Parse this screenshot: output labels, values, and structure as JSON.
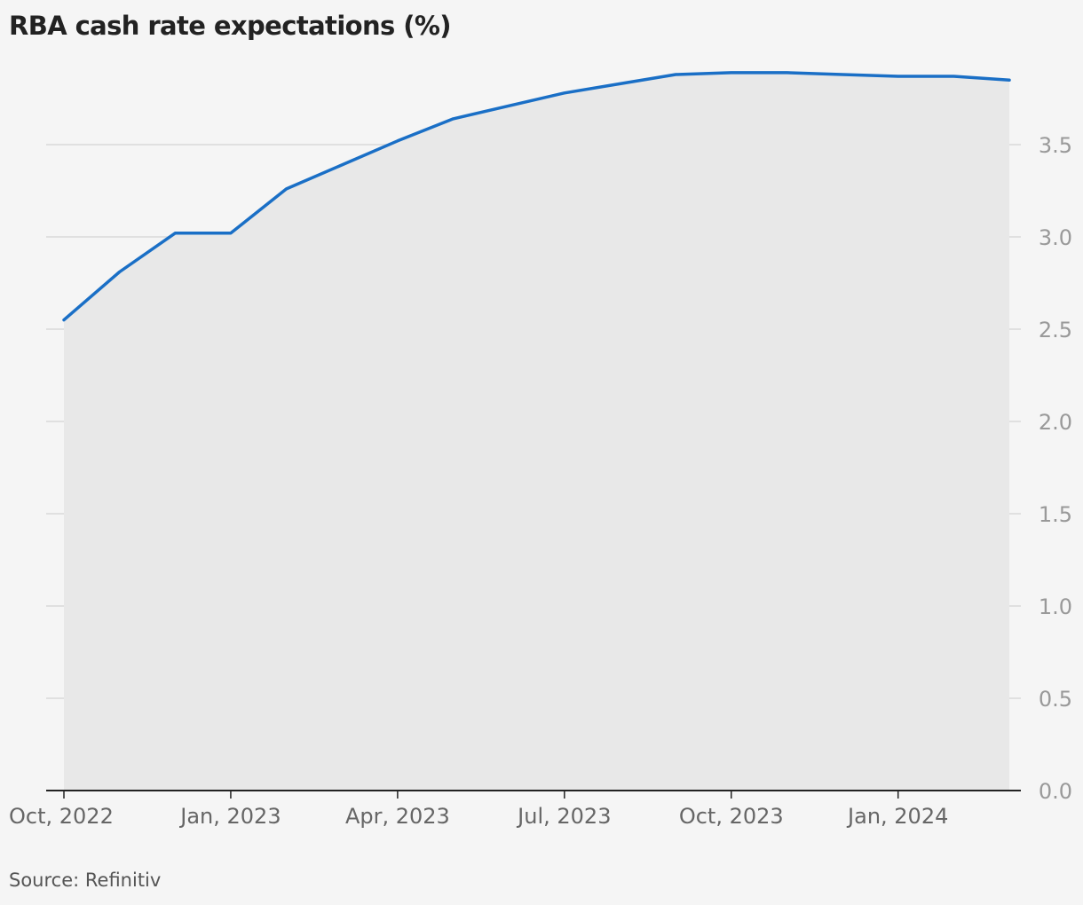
{
  "title": "RBA cash rate expectations (%)",
  "source": "Source: Refinitiv",
  "colors": {
    "line": "#1a6fc6",
    "area": "#e8e8e8",
    "grid": "#d9d9d9",
    "axis": "#222222",
    "background": "#f5f5f5"
  },
  "chart_data": {
    "type": "area",
    "title": "RBA cash rate expectations (%)",
    "xlabel": "",
    "ylabel": "",
    "ylim": [
      0,
      4
    ],
    "yticks": [
      0.0,
      0.5,
      1.0,
      1.5,
      2.0,
      2.5,
      3.0,
      3.5
    ],
    "ytick_labels": [
      "0.0",
      "0.5",
      "1.0",
      "1.5",
      "2.0",
      "2.5",
      "3.0",
      "3.5"
    ],
    "y_axis_side": "right",
    "grid": "horizontal",
    "xlim": [
      "2022-10",
      "2024-03"
    ],
    "xticks": [
      "2022-10",
      "2023-01",
      "2023-04",
      "2023-07",
      "2023-10",
      "2024-01"
    ],
    "xtick_labels": [
      "Oct, 2022",
      "Jan, 2023",
      "Apr, 2023",
      "Jul, 2023",
      "Oct, 2023",
      "Jan, 2024"
    ],
    "x": [
      "2022-10",
      "2022-11",
      "2022-12",
      "2023-01",
      "2023-02",
      "2023-03",
      "2023-04",
      "2023-05",
      "2023-06",
      "2023-07",
      "2023-08",
      "2023-09",
      "2023-10",
      "2023-11",
      "2023-12",
      "2024-01",
      "2024-02",
      "2024-03"
    ],
    "values": [
      2.55,
      2.81,
      3.02,
      3.02,
      3.26,
      3.39,
      3.52,
      3.64,
      3.71,
      3.78,
      3.83,
      3.88,
      3.89,
      3.89,
      3.88,
      3.87,
      3.87,
      3.85
    ]
  }
}
